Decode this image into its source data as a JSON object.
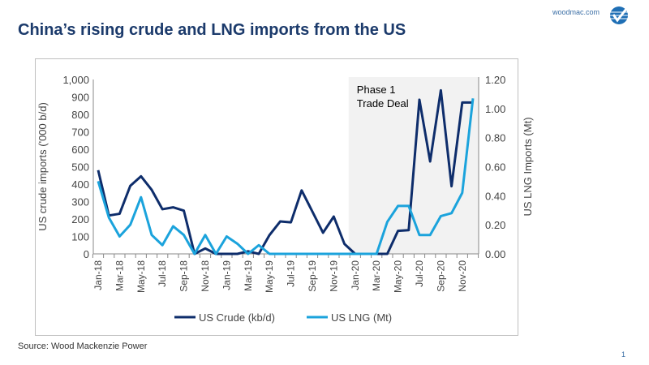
{
  "header": {
    "title": "China’s rising crude and LNG imports from the US",
    "site": "woodmac.com",
    "page": "1"
  },
  "footer": {
    "source": "Source: Wood Mackenzie Power"
  },
  "chart_data": {
    "type": "line",
    "title": "",
    "x": [
      "Jan-18",
      "Feb-18",
      "Mar-18",
      "Apr-18",
      "May-18",
      "Jun-18",
      "Jul-18",
      "Aug-18",
      "Sep-18",
      "Oct-18",
      "Nov-18",
      "Dec-18",
      "Jan-19",
      "Feb-19",
      "Mar-19",
      "Apr-19",
      "May-19",
      "Jun-19",
      "Jul-19",
      "Aug-19",
      "Sep-19",
      "Oct-19",
      "Nov-19",
      "Dec-19",
      "Jan-20",
      "Feb-20",
      "Mar-20",
      "Apr-20",
      "May-20",
      "Jun-20",
      "Jul-20",
      "Aug-20",
      "Sep-20",
      "Oct-20",
      "Nov-20",
      "Dec-20"
    ],
    "x_tick_labels": [
      "Jan-18",
      "Mar-18",
      "May-18",
      "Jul-18",
      "Sep-18",
      "Nov-18",
      "Jan-19",
      "Mar-19",
      "May-19",
      "Jul-19",
      "Sep-19",
      "Nov-19",
      "Jan-20",
      "Mar-20",
      "May-20",
      "Jul-20",
      "Sep-20",
      "Nov-20"
    ],
    "ylabel": "US crude imports ('000 b/d)",
    "y2label": "US LNG Imports (Mt)",
    "ylim": [
      0,
      1000
    ],
    "y2lim": [
      0,
      1.2
    ],
    "y_ticks": [
      "0",
      "100",
      "200",
      "300",
      "400",
      "500",
      "600",
      "700",
      "800",
      "900",
      "1,000"
    ],
    "y2_ticks": [
      "0.00",
      "0.20",
      "0.40",
      "0.60",
      "0.80",
      "1.00",
      "1.20"
    ],
    "series": [
      {
        "name": "US Crude (kb/d)",
        "axis": "left",
        "color": "#0e2d6b",
        "values": [
          480,
          220,
          230,
          390,
          445,
          367,
          256,
          267,
          248,
          0,
          31,
          0,
          0,
          0,
          15,
          0,
          108,
          186,
          181,
          364,
          243,
          121,
          214,
          57,
          0,
          0,
          0,
          0,
          132,
          136,
          884,
          530,
          938,
          388,
          868,
          868
        ]
      },
      {
        "name": "US LNG (Mt)",
        "axis": "right",
        "color": "#1ba3dc",
        "values": [
          0.5,
          0.25,
          0.12,
          0.2,
          0.39,
          0.13,
          0.06,
          0.19,
          0.13,
          0,
          0.13,
          0,
          0.12,
          0.07,
          0,
          0.06,
          0,
          0,
          0,
          0,
          0,
          0,
          0,
          0,
          0,
          0,
          0,
          0.22,
          0.33,
          0.33,
          0.13,
          0.13,
          0.26,
          0.28,
          0.42,
          1.07
        ]
      }
    ],
    "annotation": {
      "label_line1": "Phase 1",
      "label_line2": "Trade Deal",
      "shaded_from": "Jan-20",
      "shaded_to": "Dec-20",
      "shade_color": "#f2f2f2"
    },
    "legend": "bottom",
    "grid": false
  }
}
